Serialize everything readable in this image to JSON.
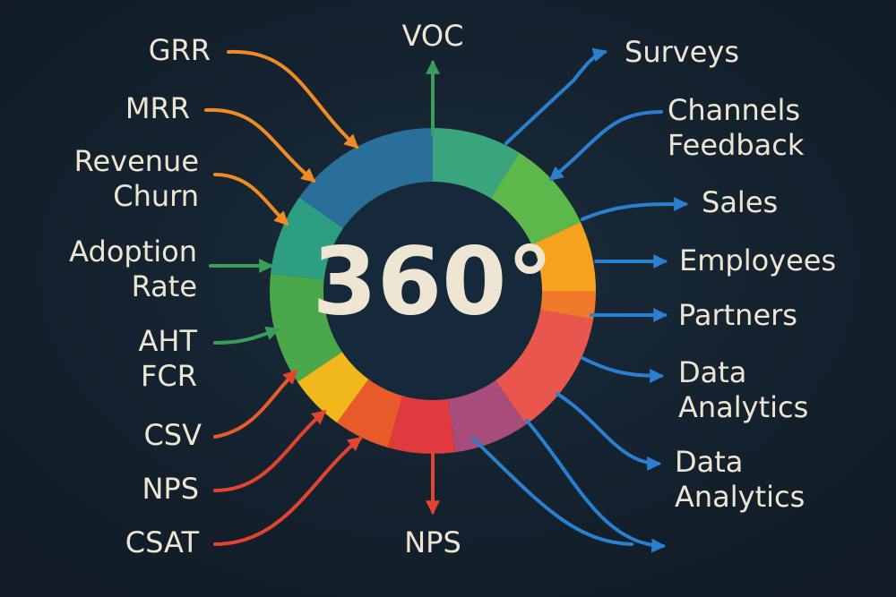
{
  "center": "360°",
  "top_label": "VOC",
  "bottom_label": "NPS",
  "left_labels": [
    [
      "GRR"
    ],
    [
      "MRR"
    ],
    [
      "Revenue",
      "Churn"
    ],
    [
      "Adoption",
      "Rate"
    ],
    [
      "AHT",
      "FCR"
    ],
    [
      "CSV"
    ],
    [
      "NPS"
    ],
    [
      "CSAT"
    ]
  ],
  "right_labels": [
    [
      "Surveys"
    ],
    [
      "Channels",
      "Feedback"
    ],
    [
      "Sales"
    ],
    [
      "Employees"
    ],
    [
      "Partners"
    ],
    [
      "Data",
      "Analytics"
    ],
    [
      "Data",
      "Analytics"
    ]
  ]
}
